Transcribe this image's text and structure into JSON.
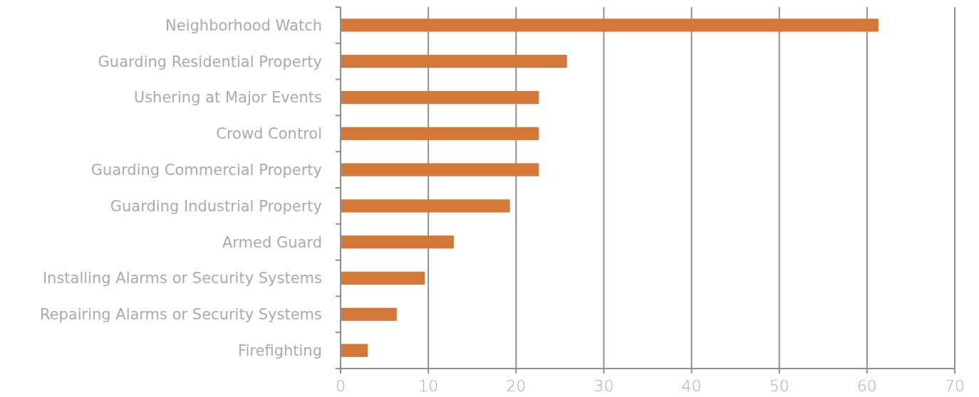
{
  "chart_data": {
    "type": "bar",
    "orientation": "horizontal",
    "categories": [
      "Neighborhood Watch",
      "Guarding Residential Property",
      "Ushering at Major Events",
      "Crowd Control",
      "Guarding Commercial Property",
      "Guarding Industrial Property",
      "Armed Guard",
      "Installing Alarms or Security Systems",
      "Repairing Alarms or Security Systems",
      "Firefighting"
    ],
    "values": [
      61.3,
      25.8,
      22.6,
      22.6,
      22.6,
      19.3,
      12.9,
      9.6,
      6.4,
      3.1
    ],
    "color": "#d4783a",
    "xlim": [
      0,
      70
    ],
    "xticks": [
      0,
      10,
      20,
      30,
      40,
      50,
      60,
      70
    ],
    "grid": "x"
  }
}
